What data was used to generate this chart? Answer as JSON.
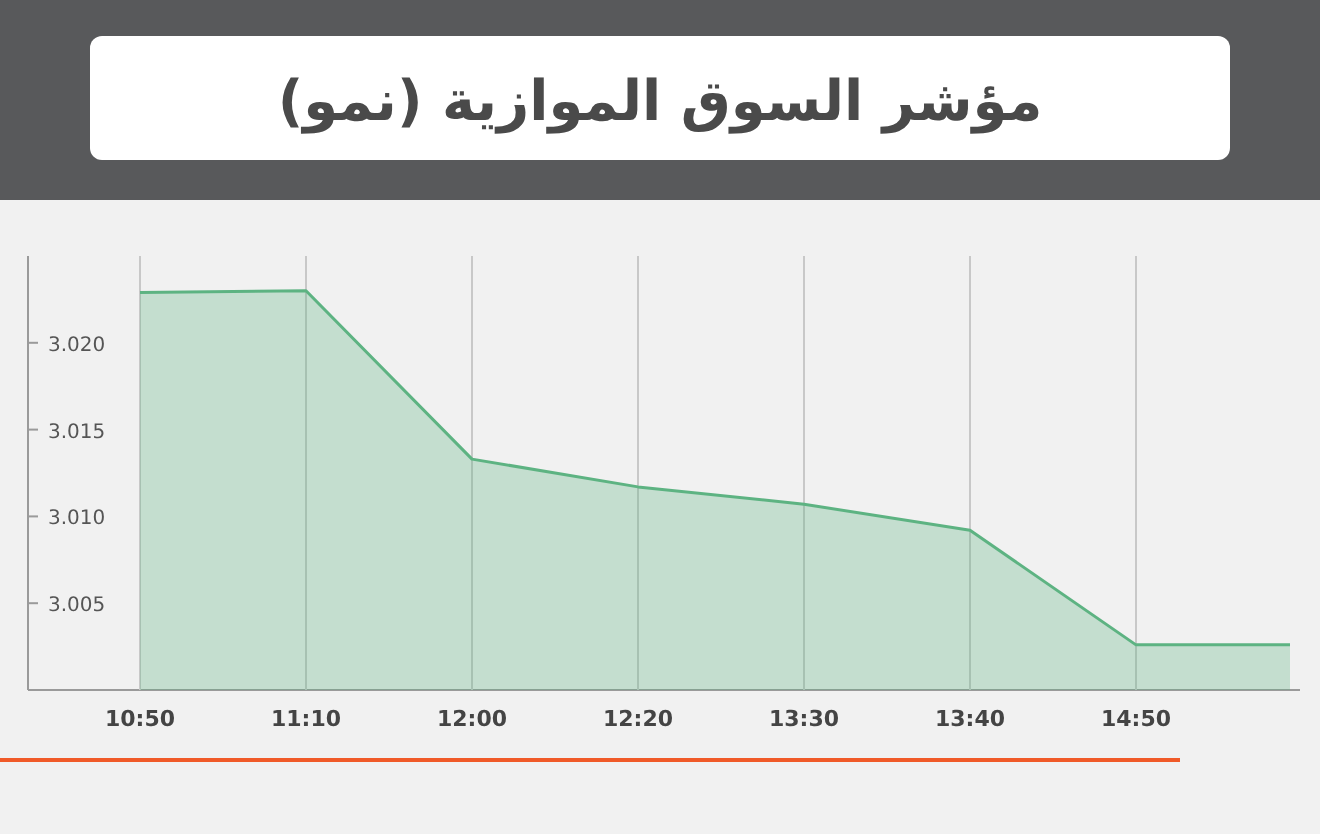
{
  "chart_data": {
    "type": "area",
    "title": "مؤشر السوق الموازية (نمو)",
    "categories": [
      "10:50",
      "11:10",
      "12:00",
      "12:20",
      "13:30",
      "13:40",
      "14:50",
      null
    ],
    "series": [
      {
        "color": "#5db382",
        "values": [
          3.0229,
          3.023,
          3.0133,
          3.0117,
          3.0107,
          3.0092,
          3.0026,
          3.0026
        ]
      }
    ],
    "ylim": [
      3.0,
      3.025
    ],
    "yticks": [
      {
        "value": 3.005,
        "label": "3.005"
      },
      {
        "value": 3.01,
        "label": "3.010"
      },
      {
        "value": 3.015,
        "label": "3.015"
      },
      {
        "value": 3.02,
        "label": "3.020"
      }
    ],
    "grid": "x"
  }
}
